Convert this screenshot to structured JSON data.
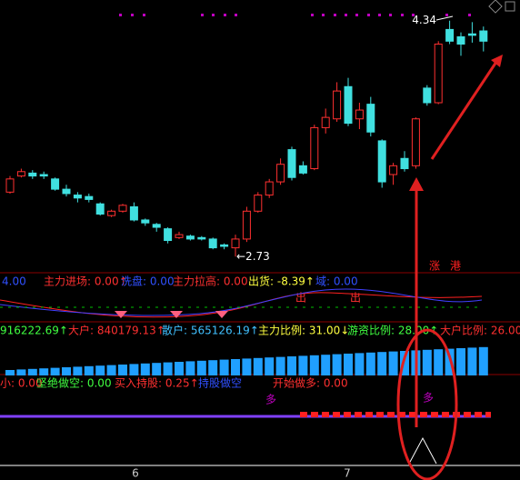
{
  "chart_data": {
    "type": "candlestick",
    "ylim": [
      2.62,
      4.45
    ],
    "open": [
      3.17,
      3.28,
      3.3,
      3.29,
      3.26,
      3.19,
      3.15,
      3.14,
      3.09,
      3.01,
      3.04,
      3.07,
      2.98,
      2.95,
      2.92,
      2.86,
      2.87,
      2.86,
      2.85,
      2.81,
      2.79,
      2.85,
      3.04,
      3.15,
      3.24,
      3.46,
      3.35,
      3.33,
      3.61,
      3.67,
      3.89,
      3.67,
      3.77,
      3.52,
      3.29,
      3.4,
      3.35,
      3.88,
      3.78,
      4.28,
      4.23,
      4.25,
      4.27
    ],
    "high": [
      3.28,
      3.33,
      3.32,
      3.31,
      3.27,
      3.22,
      3.17,
      3.16,
      3.1,
      3.05,
      3.09,
      3.1,
      2.99,
      2.96,
      2.93,
      2.9,
      2.88,
      2.87,
      2.86,
      2.82,
      2.88,
      3.07,
      3.17,
      3.26,
      3.4,
      3.48,
      3.38,
      3.63,
      3.74,
      3.92,
      3.95,
      3.78,
      3.82,
      3.53,
      3.37,
      3.45,
      3.68,
      3.9,
      4.2,
      4.34,
      4.26,
      4.33,
      4.3
    ],
    "low": [
      3.16,
      3.27,
      3.26,
      3.26,
      3.18,
      3.14,
      3.1,
      3.1,
      3.01,
      3.0,
      3.03,
      2.97,
      2.94,
      2.9,
      2.82,
      2.85,
      2.84,
      2.84,
      2.78,
      2.78,
      2.73,
      2.83,
      3.03,
      3.13,
      3.22,
      3.25,
      3.29,
      3.32,
      3.57,
      3.65,
      3.62,
      3.6,
      3.55,
      3.2,
      3.22,
      3.31,
      3.33,
      3.76,
      3.77,
      4.18,
      4.1,
      4.19,
      4.13
    ],
    "close": [
      3.26,
      3.31,
      3.28,
      3.28,
      3.19,
      3.16,
      3.13,
      3.12,
      3.02,
      3.04,
      3.08,
      2.98,
      2.96,
      2.93,
      2.84,
      2.88,
      2.85,
      2.85,
      2.79,
      2.8,
      2.85,
      3.04,
      3.15,
      3.24,
      3.36,
      3.27,
      3.3,
      3.61,
      3.68,
      3.86,
      3.64,
      3.73,
      3.58,
      3.24,
      3.35,
      3.33,
      3.67,
      3.78,
      4.18,
      4.2,
      4.18,
      4.24,
      4.2
    ],
    "max_label": "4.34",
    "min_label": "←2.73",
    "x_labels": [
      "6",
      "7"
    ]
  },
  "indicator1": {
    "items": [
      "4.00",
      "主力进场: 0.00↑",
      "洗盘: 0.00",
      "主力拉高: 0.00",
      "出货: -8.39↑",
      "域: 0.00"
    ],
    "signs": [
      "出",
      "出",
      "涨",
      "港"
    ]
  },
  "indicator2": {
    "items": [
      "916222.69↑",
      "大户: 840179.13↑",
      "散户: 565126.19↑",
      "主力比例: 31.00↓",
      "游资比例: 28.00↑",
      "大户比例: 26.00↑"
    ]
  },
  "indicator3": {
    "items": [
      "小: 0.00",
      "坚绝做空: 0.00",
      "买入持股: 0.25↑",
      "持股做空",
      "开始做多: 0.00"
    ],
    "signs": [
      "多",
      "多"
    ]
  }
}
